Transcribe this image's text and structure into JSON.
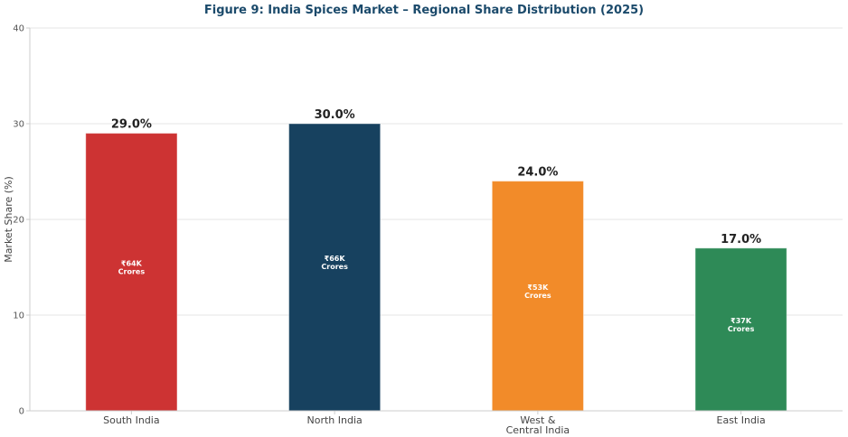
{
  "chart_data": {
    "type": "bar",
    "title": "Figure 9: India Spices Market – Regional Share Distribution (2025)",
    "xlabel": "",
    "ylabel": "Market Share (%)",
    "ylim": [
      0,
      40
    ],
    "yticks": [
      0,
      10,
      20,
      30,
      40
    ],
    "grid": true,
    "categories": [
      [
        "South India"
      ],
      [
        "North India"
      ],
      [
        "West &",
        "Central India"
      ],
      [
        "East India"
      ]
    ],
    "values": [
      29.0,
      30.0,
      24.0,
      17.0
    ],
    "value_labels": [
      "29.0%",
      "30.0%",
      "24.0%",
      "17.0%"
    ],
    "inner_labels": [
      [
        "₹64K",
        "Crores"
      ],
      [
        "₹66K",
        "Crores"
      ],
      [
        "₹53K",
        "Crores"
      ],
      [
        "₹37K",
        "Crores"
      ]
    ],
    "colors": [
      "#cd3333",
      "#17415f",
      "#f28b29",
      "#2e8a57"
    ]
  }
}
